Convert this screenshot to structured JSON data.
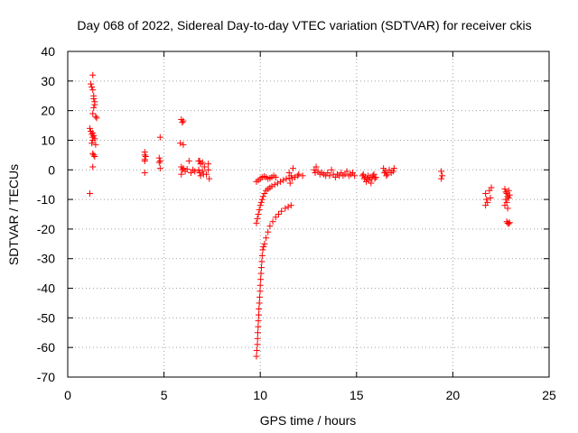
{
  "chart_data": {
    "type": "scatter",
    "title": "Day 068 of 2022, Sidereal Day-to-day VTEC variation (SDTVAR) for receiver ckis",
    "xlabel": "GPS time / hours",
    "ylabel": "SDTVAR / TECUs",
    "xlim": [
      0,
      25
    ],
    "ylim": [
      -70,
      40
    ],
    "xticks": [
      0,
      5,
      10,
      15,
      20,
      25
    ],
    "yticks": [
      -70,
      -60,
      -50,
      -40,
      -30,
      -20,
      -10,
      0,
      10,
      20,
      30,
      40
    ],
    "grid": true,
    "marker": "+",
    "color": "#ff0000",
    "series": [
      {
        "name": "SDTVAR",
        "points": [
          [
            1.2,
            29
          ],
          [
            1.25,
            28
          ],
          [
            1.3,
            32
          ],
          [
            1.3,
            27
          ],
          [
            1.35,
            25
          ],
          [
            1.35,
            24
          ],
          [
            1.4,
            23
          ],
          [
            1.4,
            22
          ],
          [
            1.35,
            21
          ],
          [
            1.3,
            19
          ],
          [
            1.45,
            18
          ],
          [
            1.5,
            17.5
          ],
          [
            1.15,
            14
          ],
          [
            1.2,
            13
          ],
          [
            1.3,
            12.5
          ],
          [
            1.25,
            12
          ],
          [
            1.35,
            11.5
          ],
          [
            1.3,
            11
          ],
          [
            1.4,
            10.5
          ],
          [
            1.3,
            10
          ],
          [
            1.25,
            9
          ],
          [
            1.45,
            8.5
          ],
          [
            1.3,
            5.5
          ],
          [
            1.35,
            5
          ],
          [
            1.4,
            4.5
          ],
          [
            1.3,
            1
          ],
          [
            1.15,
            -8
          ],
          [
            4.0,
            6
          ],
          [
            4.0,
            5
          ],
          [
            4.05,
            4.5
          ],
          [
            4.0,
            3.5
          ],
          [
            4.0,
            3
          ],
          [
            4.0,
            -1
          ],
          [
            4.8,
            11
          ],
          [
            4.75,
            4
          ],
          [
            4.8,
            3
          ],
          [
            4.75,
            2.5
          ],
          [
            4.8,
            0.5
          ],
          [
            5.9,
            17
          ],
          [
            6.0,
            16.5
          ],
          [
            5.95,
            16
          ],
          [
            5.85,
            9
          ],
          [
            6.0,
            8.5
          ],
          [
            5.9,
            1
          ],
          [
            6.0,
            0.5
          ],
          [
            5.95,
            0
          ],
          [
            6.1,
            -0.5
          ],
          [
            6.2,
            0.2
          ],
          [
            5.9,
            -1.5
          ],
          [
            6.3,
            3
          ],
          [
            6.4,
            -1
          ],
          [
            6.5,
            0
          ],
          [
            6.6,
            -0.5
          ],
          [
            6.8,
            3
          ],
          [
            6.9,
            2
          ],
          [
            7.0,
            2.5
          ],
          [
            6.8,
            0
          ],
          [
            6.85,
            -1
          ],
          [
            7.0,
            -0.5
          ],
          [
            7.1,
            1
          ],
          [
            7.2,
            -1.5
          ],
          [
            6.9,
            -2
          ],
          [
            7.3,
            2
          ],
          [
            7.3,
            0
          ],
          [
            7.35,
            -3
          ],
          [
            6.85,
            3
          ],
          [
            7.05,
            -1.5
          ],
          [
            9.8,
            -63
          ],
          [
            9.82,
            -61
          ],
          [
            9.85,
            -59
          ],
          [
            9.86,
            -57
          ],
          [
            9.87,
            -55
          ],
          [
            9.89,
            -53
          ],
          [
            9.9,
            -51
          ],
          [
            9.92,
            -49
          ],
          [
            9.93,
            -47
          ],
          [
            9.95,
            -45
          ],
          [
            9.97,
            -43
          ],
          [
            9.99,
            -41
          ],
          [
            10.0,
            -39
          ],
          [
            10.02,
            -37
          ],
          [
            10.04,
            -35
          ],
          [
            10.06,
            -33
          ],
          [
            10.08,
            -31
          ],
          [
            10.1,
            -29
          ],
          [
            10.13,
            -27
          ],
          [
            10.17,
            -26
          ],
          [
            10.22,
            -25
          ],
          [
            10.3,
            -23
          ],
          [
            10.4,
            -21
          ],
          [
            10.5,
            -19
          ],
          [
            10.65,
            -17.5
          ],
          [
            10.8,
            -16
          ],
          [
            10.95,
            -15
          ],
          [
            11.1,
            -14
          ],
          [
            11.3,
            -13
          ],
          [
            11.45,
            -12.5
          ],
          [
            11.6,
            -12
          ],
          [
            9.8,
            -18
          ],
          [
            9.85,
            -16.5
          ],
          [
            9.9,
            -15
          ],
          [
            9.95,
            -13.5
          ],
          [
            10.0,
            -12
          ],
          [
            10.05,
            -11
          ],
          [
            10.1,
            -10
          ],
          [
            10.15,
            -9
          ],
          [
            10.22,
            -8
          ],
          [
            10.3,
            -7
          ],
          [
            10.4,
            -6.5
          ],
          [
            10.5,
            -6
          ],
          [
            10.6,
            -5.5
          ],
          [
            10.75,
            -5
          ],
          [
            10.9,
            -4.5
          ],
          [
            11.05,
            -4
          ],
          [
            11.2,
            -3.5
          ],
          [
            11.35,
            -3
          ],
          [
            11.5,
            -2.8
          ],
          [
            11.65,
            -3
          ],
          [
            11.8,
            -2.5
          ],
          [
            11.95,
            -2
          ],
          [
            9.8,
            -4
          ],
          [
            9.9,
            -3.5
          ],
          [
            10.0,
            -3
          ],
          [
            10.1,
            -2.5
          ],
          [
            10.2,
            -2.2
          ],
          [
            10.3,
            -2.5
          ],
          [
            10.4,
            -3
          ],
          [
            10.5,
            -2.8
          ],
          [
            10.6,
            -2.5
          ],
          [
            10.7,
            -2
          ],
          [
            10.8,
            -2.5
          ],
          [
            11.5,
            -1
          ],
          [
            11.6,
            -2
          ],
          [
            11.7,
            0.5
          ],
          [
            12.0,
            -1.5
          ],
          [
            12.2,
            -2
          ],
          [
            11.55,
            -4.5
          ],
          [
            12.8,
            0
          ],
          [
            12.85,
            -1
          ],
          [
            12.9,
            1
          ],
          [
            13.0,
            -0.5
          ],
          [
            13.1,
            -1.5
          ],
          [
            13.2,
            -1
          ],
          [
            13.3,
            -1.5
          ],
          [
            13.4,
            -2
          ],
          [
            13.5,
            -1
          ],
          [
            13.6,
            -2
          ],
          [
            13.7,
            0
          ],
          [
            13.8,
            -1.5
          ],
          [
            13.9,
            -2.5
          ],
          [
            14.0,
            -1.5
          ],
          [
            14.1,
            -2
          ],
          [
            14.2,
            -1
          ],
          [
            14.3,
            -2
          ],
          [
            14.4,
            -1.5
          ],
          [
            14.5,
            -0.5
          ],
          [
            14.6,
            -2
          ],
          [
            14.7,
            -1.5
          ],
          [
            14.8,
            -1
          ],
          [
            14.9,
            -2
          ],
          [
            15.3,
            -2
          ],
          [
            15.35,
            -1.5
          ],
          [
            15.4,
            -3
          ],
          [
            15.45,
            -2.5
          ],
          [
            15.5,
            -4
          ],
          [
            15.55,
            -3
          ],
          [
            15.6,
            -2
          ],
          [
            15.65,
            -3.5
          ],
          [
            15.7,
            -2.5
          ],
          [
            15.75,
            -4.5
          ],
          [
            15.8,
            -3
          ],
          [
            15.85,
            -2
          ],
          [
            15.9,
            -1.5
          ],
          [
            15.95,
            -3
          ],
          [
            16.0,
            -2.5
          ],
          [
            16.4,
            0.5
          ],
          [
            16.45,
            -1
          ],
          [
            16.5,
            -0.5
          ],
          [
            16.55,
            -2
          ],
          [
            16.6,
            -1.5
          ],
          [
            16.7,
            0
          ],
          [
            16.8,
            -1
          ],
          [
            16.9,
            -0.5
          ],
          [
            16.95,
            0.5
          ],
          [
            19.4,
            -0.5
          ],
          [
            19.45,
            -2
          ],
          [
            19.4,
            -3
          ],
          [
            21.7,
            -8
          ],
          [
            21.75,
            -10
          ],
          [
            21.8,
            -11
          ],
          [
            21.7,
            -12
          ],
          [
            21.9,
            -7
          ],
          [
            22.0,
            -6
          ],
          [
            21.95,
            -9.5
          ],
          [
            22.7,
            -6.5
          ],
          [
            22.75,
            -7.5
          ],
          [
            22.8,
            -8
          ],
          [
            22.85,
            -9
          ],
          [
            22.9,
            -9.5
          ],
          [
            22.75,
            -10
          ],
          [
            22.8,
            -11
          ],
          [
            22.7,
            -12
          ],
          [
            22.85,
            -13
          ],
          [
            22.9,
            -7
          ],
          [
            22.95,
            -8.5
          ],
          [
            22.8,
            -17.5
          ],
          [
            22.85,
            -18
          ],
          [
            22.9,
            -18.2
          ],
          [
            22.95,
            -17.8
          ]
        ]
      }
    ]
  }
}
